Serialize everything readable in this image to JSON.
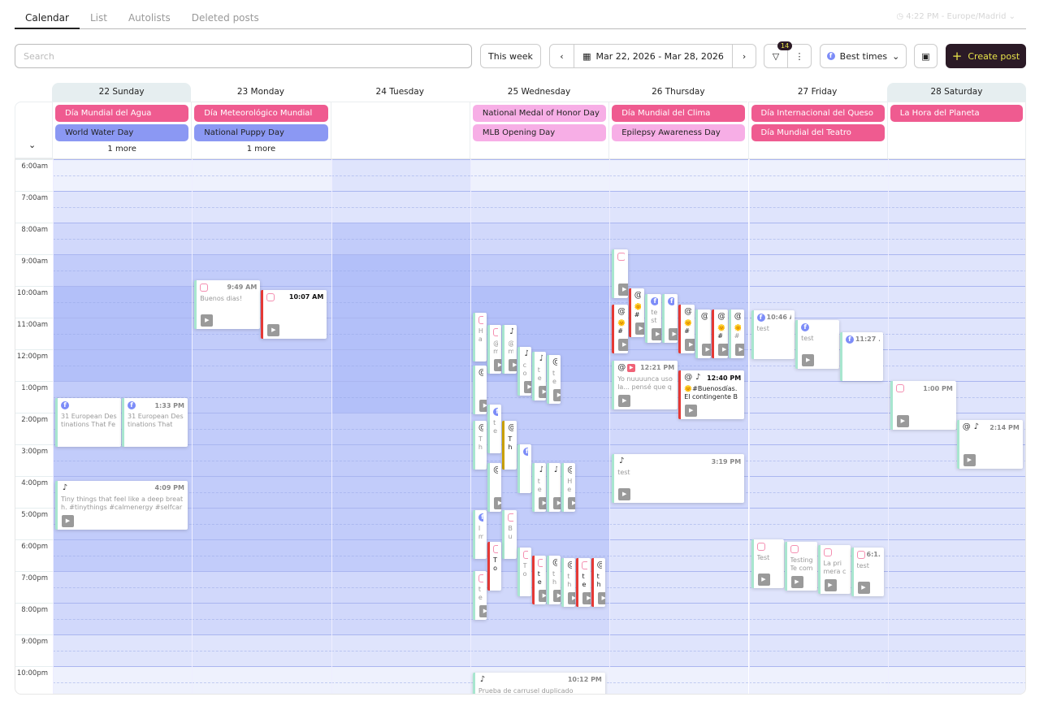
{
  "tabs": [
    "Calendar",
    "List",
    "Autolists",
    "Deleted posts"
  ],
  "timezone": "4:22 PM - Europe/Madrid",
  "search": {
    "placeholder": "Search"
  },
  "toolbar": {
    "this_week": "This week",
    "date_range": "Mar 22, 2026 - Mar 28, 2026",
    "filter_count": "14",
    "best_times": "Best times",
    "create_post": "Create post"
  },
  "colors": {
    "accent": "#2b1a26",
    "accent_text": "#e8e44a",
    "holiday_es": "#ef5b90",
    "holiday_intl": "#8b98f3",
    "holiday_us": "#f7aee6"
  },
  "days": [
    {
      "label": "22 Sunday",
      "weekend": true,
      "events": [
        {
          "name": "Día Mundial del Agua",
          "type": "holiday_es"
        },
        {
          "name": "World Water Day",
          "type": "holiday_intl"
        }
      ],
      "more": "1 more"
    },
    {
      "label": "23 Monday",
      "events": [
        {
          "name": "Día Meteorológico Mundial",
          "type": "holiday_es"
        },
        {
          "name": "National Puppy Day",
          "type": "holiday_intl"
        }
      ],
      "more": "1 more"
    },
    {
      "label": "24 Tuesday",
      "events": []
    },
    {
      "label": "25 Wednesday",
      "events": [
        {
          "name": "National Medal of Honor Day",
          "type": "holiday_us"
        },
        {
          "name": "MLB Opening Day",
          "type": "holiday_us"
        }
      ]
    },
    {
      "label": "26 Thursday",
      "events": [
        {
          "name": "Día Mundial del Clima",
          "type": "holiday_es"
        },
        {
          "name": "Epilepsy Awareness Day",
          "type": "holiday_us"
        }
      ]
    },
    {
      "label": "27 Friday",
      "events": [
        {
          "name": "Día Internacional del Queso",
          "type": "holiday_es"
        },
        {
          "name": "Día Mundial del Teatro",
          "type": "holiday_es"
        }
      ]
    },
    {
      "label": "28 Saturday",
      "weekend": true,
      "events": [
        {
          "name": "La Hora del Planeta",
          "type": "holiday_es"
        }
      ]
    }
  ],
  "hours": [
    "6:00am",
    "7:00am",
    "8:00am",
    "9:00am",
    "10:00am",
    "11:00am",
    "12:00pm",
    "1:00pm",
    "2:00pm",
    "3:00pm",
    "4:00pm",
    "5:00pm",
    "6:00pm",
    "7:00pm",
    "8:00pm",
    "9:00pm",
    "10:00pm"
  ],
  "best_times_levels": [
    [
      0,
      1,
      2,
      3,
      4,
      4,
      4,
      3,
      3,
      3,
      3,
      3,
      3,
      2,
      2,
      1,
      0
    ],
    [
      0,
      1,
      2,
      3,
      3,
      3,
      3,
      3,
      3,
      3,
      3,
      3,
      3,
      2,
      2,
      1,
      0
    ],
    [
      1,
      1,
      3,
      4,
      4,
      4,
      4,
      4,
      3,
      3,
      3,
      3,
      3,
      2,
      2,
      1,
      0
    ],
    [
      0,
      1,
      2,
      3,
      4,
      4,
      4,
      3,
      3,
      3,
      3,
      3,
      3,
      2,
      2,
      1,
      0
    ],
    [
      0,
      1,
      2,
      3,
      3,
      3,
      3,
      2,
      2,
      2,
      2,
      1,
      1,
      1,
      1,
      1,
      0
    ],
    [
      0,
      1,
      1,
      1,
      1,
      1,
      1,
      1,
      1,
      1,
      1,
      1,
      1,
      1,
      1,
      1,
      0
    ],
    [
      0,
      1,
      1,
      1,
      1,
      1,
      1,
      1,
      1,
      1,
      1,
      1,
      1,
      1,
      1,
      1,
      0
    ]
  ],
  "posts": [
    {
      "day": 0,
      "time": "1:33 PM",
      "label": "",
      "net": [
        "facebook"
      ],
      "text": "31 European Destinations That Feel More Magical in December"
    },
    {
      "day": 0,
      "time": "1:33 PM",
      "label": "1:33 PM",
      "net": [
        "facebook"
      ],
      "text": "31 European Destinations That"
    },
    {
      "day": 0,
      "time": "4:09 PM",
      "label": "4:09 PM",
      "net": [
        "tiktok"
      ],
      "text": "Tiny things that feel like a deep breath. #tinythings #calmenergy #selfcare",
      "thumb": true
    },
    {
      "day": 1,
      "time": "9:49 AM",
      "label": "9:49 AM",
      "net": [
        "instagram"
      ],
      "text": "Buenos dias!",
      "thumb": true
    },
    {
      "day": 1,
      "time": "10:07 AM",
      "label": "10:07 AM",
      "net": [
        "instagram"
      ],
      "text": "",
      "thumb": true,
      "state": "red"
    },
    {
      "day": 3,
      "time": "10:50 AM",
      "label": "1...",
      "net": [
        "instagram"
      ],
      "text": "Ha ha"
    },
    {
      "day": 3,
      "time": "11:14 AM",
      "label": "11:...",
      "net": [
        "instagram"
      ],
      "text": "@metricool",
      "thumb": true
    },
    {
      "day": 3,
      "time": "11:14 AM",
      "label": "11:14 A...",
      "net": [
        "tiktok"
      ],
      "text": "@metricool_e",
      "thumb": true
    },
    {
      "day": 3,
      "time": "11:55 AM",
      "label": "11:55 A",
      "net": [
        "tiktok"
      ],
      "text": "cover",
      "thumb": true
    },
    {
      "day": 3,
      "time": "12:05 PM",
      "label": "12...",
      "net": [
        "tiktok"
      ],
      "text": "test",
      "thumb": true
    },
    {
      "day": 3,
      "time": "12:10 PM",
      "label": "1...",
      "net": [
        "threads"
      ],
      "text": "test",
      "thumb": true
    },
    {
      "day": 3,
      "time": "12:30 PM",
      "label": "12...",
      "net": [
        "threads"
      ],
      "text": "",
      "thumb": true
    },
    {
      "day": 3,
      "time": "1:45 PM",
      "label": "1:...",
      "net": [
        "facebook"
      ],
      "text": "test"
    },
    {
      "day": 3,
      "time": "2:15 PM",
      "label": "2...",
      "net": [
        "threads"
      ],
      "text": "The API"
    },
    {
      "day": 3,
      "time": "2:15 PM",
      "label": "2:...",
      "net": [
        "threads"
      ],
      "text": "Threads API",
      "state": "yellow"
    },
    {
      "day": 3,
      "time": "3:00 PM",
      "label": "3:...",
      "net": [
        "facebook"
      ],
      "text": ""
    },
    {
      "day": 3,
      "time": "3:35 PM",
      "label": "3:...",
      "net": [
        "threads"
      ],
      "text": "",
      "thumb": true
    },
    {
      "day": 3,
      "time": "3:35 PM",
      "label": "",
      "net": [
        "tiktok"
      ],
      "text": "test",
      "thumb": true
    },
    {
      "day": 3,
      "time": "3:35 PM",
      "label": "",
      "net": [
        "tiktok"
      ],
      "text": "",
      "thumb": true
    },
    {
      "day": 3,
      "time": "3:35 PM",
      "label": "3:...",
      "net": [
        "threads"
      ],
      "text": "Heinz remove",
      "thumb": true
    },
    {
      "day": 3,
      "time": "5:05 PM",
      "label": "5...",
      "net": [
        "facebook"
      ],
      "text": "Im di"
    },
    {
      "day": 3,
      "time": "5:05 PM",
      "label": "5:...",
      "net": [
        "instagram"
      ],
      "text": "Buong"
    },
    {
      "day": 3,
      "time": "6:05 PM",
      "label": "6...",
      "net": [
        "instagram"
      ],
      "text": "Tor cal",
      "state": "red"
    },
    {
      "day": 3,
      "time": "6:15 PM",
      "label": "6:...",
      "net": [
        "instagram"
      ],
      "text": "Tomor cal"
    },
    {
      "day": 3,
      "time": "6:30 PM",
      "label": "6",
      "net": [
        "instagram"
      ],
      "text": "tes",
      "state": "red",
      "thumb": true
    },
    {
      "day": 3,
      "time": "6:30 PM",
      "label": "6",
      "net": [
        "threads"
      ],
      "text": "the is",
      "thumb": true
    },
    {
      "day": 3,
      "time": "6:35 PM",
      "label": "6",
      "net": [
        "threads"
      ],
      "text": "the is",
      "thumb": true
    },
    {
      "day": 3,
      "time": "6:35 PM",
      "label": "6",
      "net": [
        "instagram"
      ],
      "text": "tes cal",
      "state": "red",
      "thumb": true
    },
    {
      "day": 3,
      "time": "6:35 PM",
      "label": "6",
      "net": [
        "threads"
      ],
      "text": "the is",
      "state": "red",
      "thumb": true
    },
    {
      "day": 3,
      "time": "7:00 PM",
      "label": "7...",
      "net": [
        "instagram"
      ],
      "text": "tes",
      "thumb": true
    },
    {
      "day": 3,
      "time": "10:12 PM",
      "label": "10:12 PM",
      "net": [
        "tiktok"
      ],
      "text": "Prueba de carrusel duplicado"
    },
    {
      "day": 4,
      "time": "8:50 AM",
      "label": "8:5...",
      "net": [
        "instagram"
      ],
      "text": "",
      "thumb": true
    },
    {
      "day": 4,
      "time": "10:05 AM",
      "label": "",
      "net": [
        "threads"
      ],
      "text": "🌞 #Bu",
      "state": "red",
      "thumb": true
    },
    {
      "day": 4,
      "time": "10:15 AM",
      "label": "",
      "net": [
        "facebook"
      ],
      "text": "test",
      "thumb": true
    },
    {
      "day": 4,
      "time": "10:15 AM",
      "label": "1...",
      "net": [
        "facebook"
      ],
      "text": "",
      "thumb": true
    },
    {
      "day": 4,
      "time": "10:35 AM",
      "label": "",
      "net": [
        "threads"
      ],
      "text": "🌞 #Bu",
      "state": "red",
      "thumb": true
    },
    {
      "day": 4,
      "time": "10:35 AM",
      "label": "",
      "net": [
        "threads"
      ],
      "text": "🌞 #Bu",
      "state": "red",
      "thumb": true
    },
    {
      "day": 4,
      "time": "10:45 AM",
      "label": "",
      "net": [
        "threads"
      ],
      "text": "",
      "thumb": true
    },
    {
      "day": 4,
      "time": "10:45 AM",
      "label": "",
      "net": [
        "threads"
      ],
      "text": "🌞 #Bu",
      "state": "red",
      "thumb": true
    },
    {
      "day": 4,
      "time": "10:45 AM",
      "label": "1...",
      "net": [
        "threads"
      ],
      "text": "🌞 #Bu",
      "thumb": true
    },
    {
      "day": 4,
      "time": "12:21 PM",
      "label": "12:21 PM",
      "net": [
        "threads",
        "youtube"
      ],
      "text": "Yo nuuuunca uso la... pensé que quizás a",
      "thumb": true
    },
    {
      "day": 4,
      "time": "12:40 PM",
      "label": "12:40 PM",
      "net": [
        "threads",
        "tiktok"
      ],
      "text": "🌞#Buenosdías. El contingente BRILIB",
      "state": "red",
      "thumb": true
    },
    {
      "day": 4,
      "time": "3:19 PM",
      "label": "3:19 PM",
      "net": [
        "tiktok"
      ],
      "text": "test",
      "thumb": true
    },
    {
      "day": 5,
      "time": "10:46 AM",
      "label": "10:46 AM",
      "net": [
        "facebook"
      ],
      "text": "test"
    },
    {
      "day": 5,
      "time": "11:05 AM",
      "label": "",
      "net": [
        "facebook"
      ],
      "text": "test",
      "thumb": true
    },
    {
      "day": 5,
      "time": "11:27 AM",
      "label": "11:27 ...",
      "net": [
        "facebook"
      ],
      "text": ""
    },
    {
      "day": 5,
      "time": "6:00 PM",
      "label": "",
      "net": [
        "instagram"
      ],
      "text": "Test",
      "thumb": true
    },
    {
      "day": 5,
      "time": "6:05 PM",
      "label": "",
      "net": [
        "instagram"
      ],
      "text": "Testing Te como hoy",
      "thumb": true
    },
    {
      "day": 5,
      "time": "6:10 PM",
      "label": "",
      "net": [
        "instagram"
      ],
      "text": "La primera civilización",
      "thumb": true
    },
    {
      "day": 5,
      "time": "6:15 PM",
      "label": "6:1...",
      "net": [
        "instagram"
      ],
      "text": "test",
      "thumb": true
    },
    {
      "day": 6,
      "time": "1:00 PM",
      "label": "1:00 PM",
      "net": [
        "instagram"
      ],
      "text": "",
      "thumb": true
    },
    {
      "day": 6,
      "time": "2:14 PM",
      "label": "2:14 PM",
      "net": [
        "threads",
        "tiktok"
      ],
      "text": "",
      "thumb": true
    }
  ]
}
